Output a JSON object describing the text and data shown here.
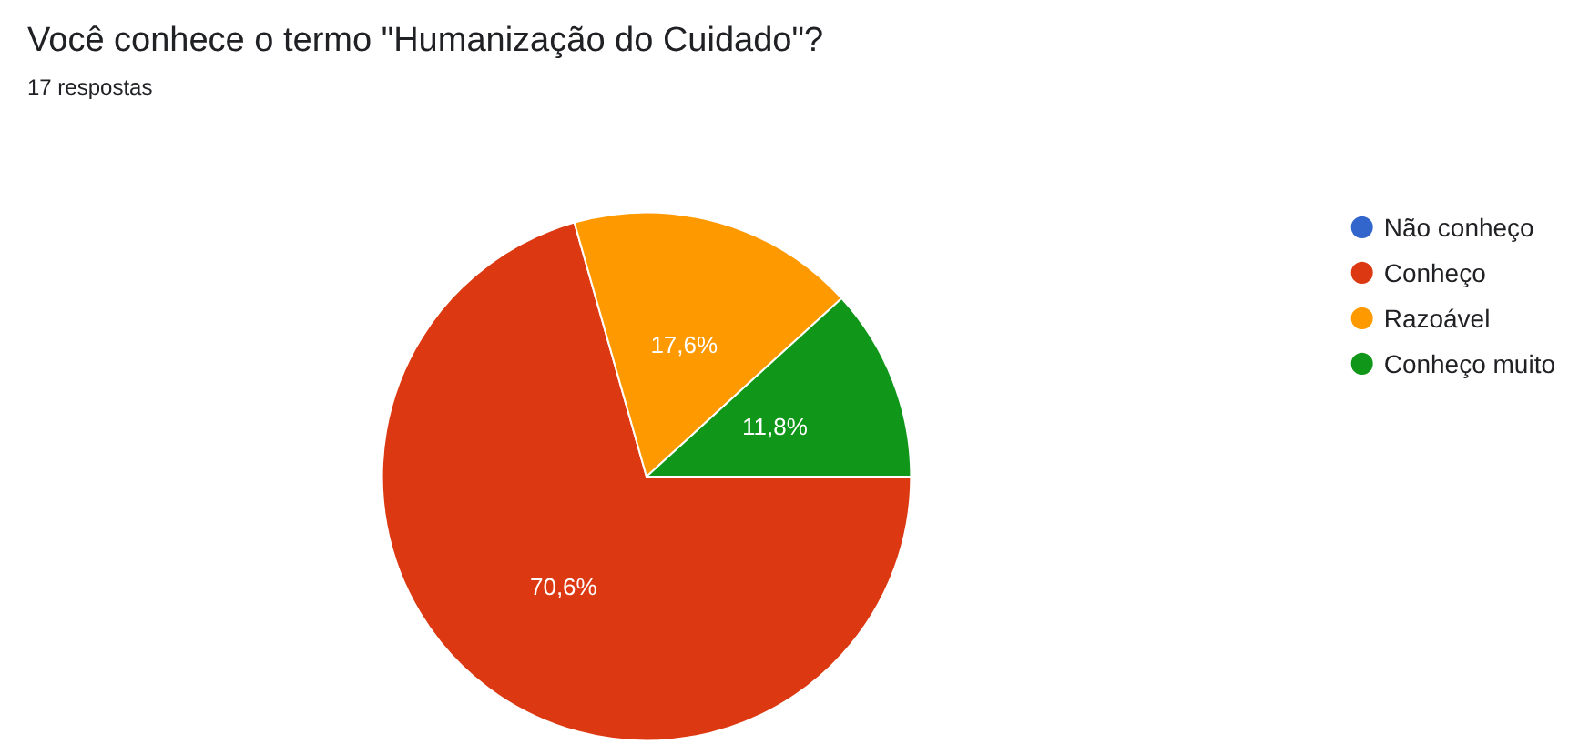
{
  "chart_data": {
    "type": "pie",
    "title": "Você conhece o termo \"Humanização do Cuidado\"?",
    "subtitle": "17 respostas",
    "categories": [
      "Não conheço",
      "Conheço",
      "Razoável",
      "Conheço muito"
    ],
    "values": [
      0,
      70.6,
      17.6,
      11.8
    ],
    "colors": [
      "#3366cc",
      "#dc3912",
      "#ff9900",
      "#109618"
    ],
    "value_labels": [
      null,
      "70,6%",
      "17,6%",
      "11,8%"
    ],
    "legend": "right"
  }
}
